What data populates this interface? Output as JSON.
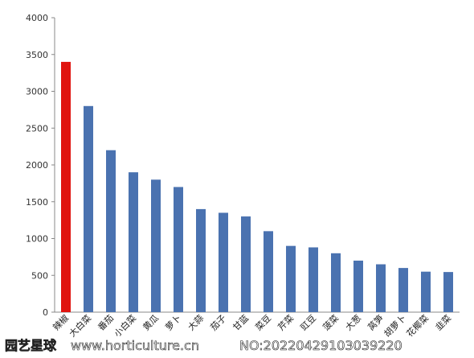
{
  "chart_data": {
    "type": "bar",
    "categories": [
      "辣椒",
      "大白菜",
      "番茄",
      "小白菜",
      "黄瓜",
      "萝卜",
      "大蒜",
      "茄子",
      "甘蓝",
      "菜豆",
      "芹菜",
      "豇豆",
      "菠菜",
      "大葱",
      "莴笋",
      "胡萝卜",
      "花椰菜",
      "韭菜"
    ],
    "values": [
      3400,
      2800,
      2200,
      1900,
      1800,
      1700,
      1400,
      1350,
      1300,
      1100,
      900,
      880,
      800,
      700,
      650,
      600,
      550,
      545
    ],
    "highlight_index": 0,
    "colors": {
      "bar": "#4a72b0",
      "highlight": "#e0140f",
      "axis": "#888888"
    },
    "yticks": [
      "0",
      "500",
      "1000",
      "1500",
      "2000",
      "2500",
      "3000",
      "3500",
      "4000"
    ],
    "ylim": [
      0,
      4000
    ],
    "grid": false,
    "legend": "none",
    "title": "",
    "xlabel": "",
    "ylabel": ""
  },
  "watermark": {
    "logo": "园艺星球",
    "site": "www.horticulture.cn",
    "number": "NO:20220429103039220"
  }
}
